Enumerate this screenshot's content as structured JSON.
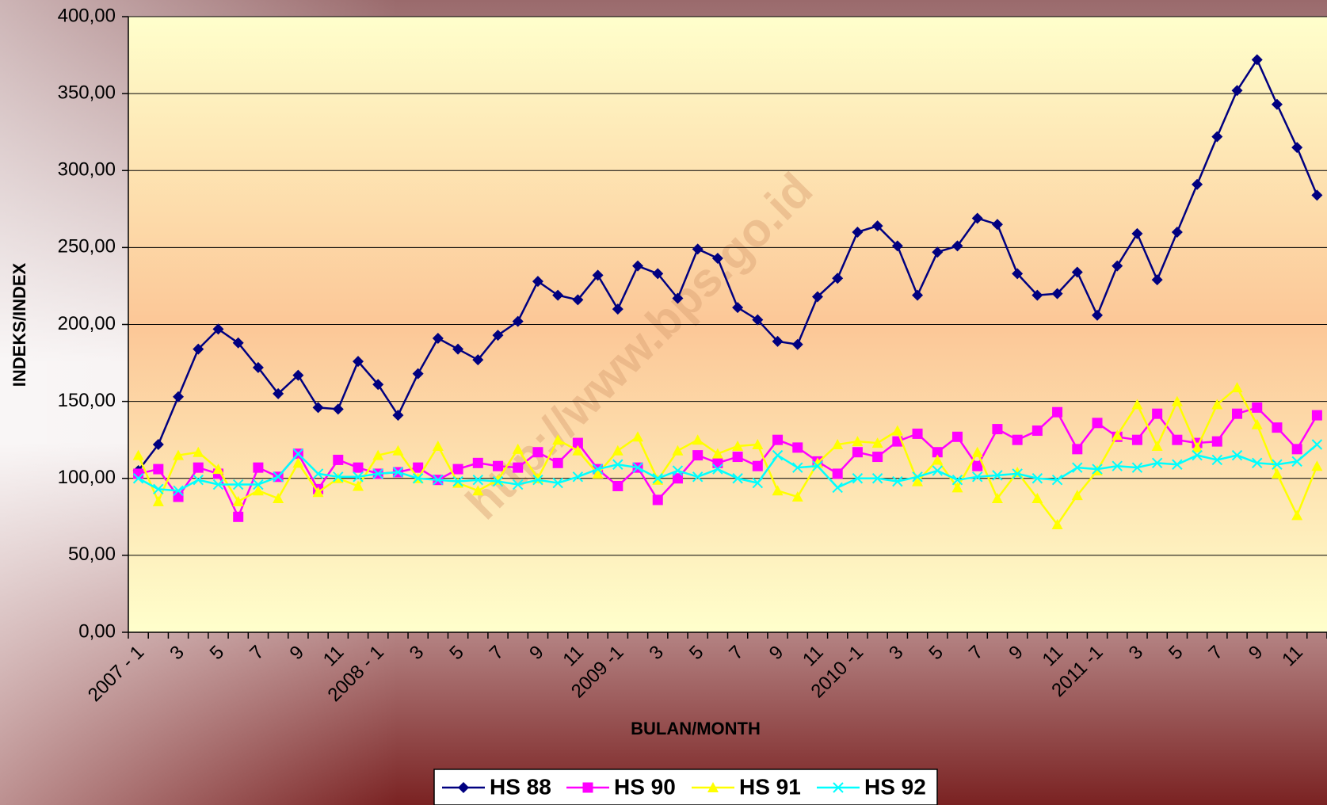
{
  "chart_data": {
    "type": "line",
    "watermark": "http://www.bps.go.id",
    "x_label": "BULAN/MONTH",
    "y_label": "INDEKS/INDEX",
    "categories": [
      "2007 - 1",
      null,
      "3",
      null,
      "5",
      null,
      "7",
      null,
      "9",
      null,
      "11",
      null,
      "2008 - 1",
      null,
      "3",
      null,
      "5",
      null,
      "7",
      null,
      "9",
      null,
      "11",
      null,
      "2009 -1",
      null,
      "3",
      null,
      "5",
      null,
      "7",
      null,
      "9",
      null,
      "11",
      null,
      "2010 -1",
      null,
      "3",
      null,
      "5",
      null,
      "7",
      null,
      "9",
      null,
      "11",
      null,
      "2011 -1",
      null,
      "3",
      null,
      "5",
      null,
      "7",
      null,
      "9",
      null,
      "11",
      null
    ],
    "series": [
      {
        "name": "HS 88",
        "color": "#000080",
        "marker": "diamond",
        "values": [
          105,
          122,
          153,
          184,
          197,
          188,
          172,
          155,
          167,
          146,
          145,
          176,
          161,
          141,
          168,
          191,
          184,
          177,
          193,
          202,
          228,
          219,
          216,
          232,
          210,
          238,
          233,
          217,
          249,
          243,
          211,
          203,
          189,
          187,
          218,
          230,
          260,
          264,
          251,
          219,
          247,
          251,
          269,
          265,
          233,
          219,
          220,
          234,
          206,
          238,
          259,
          229,
          260,
          291,
          322,
          352,
          372,
          343,
          315,
          284
        ]
      },
      {
        "name": "HS 90",
        "color": "#ff00ff",
        "marker": "square",
        "values": [
          103,
          106,
          88,
          107,
          103,
          75,
          107,
          101,
          116,
          93,
          112,
          107,
          103,
          104,
          107,
          99,
          106,
          110,
          108,
          107,
          117,
          110,
          123,
          106,
          95,
          107,
          86,
          100,
          115,
          110,
          114,
          108,
          125,
          120,
          111,
          103,
          117,
          114,
          124,
          129,
          117,
          127,
          108,
          132,
          125,
          131,
          143,
          119,
          136,
          127,
          125,
          142,
          125,
          123,
          124,
          142,
          146,
          133,
          119,
          141
        ]
      },
      {
        "name": "HS 91",
        "color": "#ffff00",
        "marker": "triangle",
        "values": [
          115,
          85,
          115,
          117,
          106,
          85,
          92,
          87,
          110,
          91,
          100,
          95,
          115,
          118,
          100,
          121,
          97,
          92,
          99,
          119,
          100,
          125,
          118,
          103,
          118,
          127,
          99,
          118,
          125,
          116,
          121,
          122,
          92,
          88,
          110,
          122,
          124,
          123,
          131,
          98,
          112,
          94,
          117,
          87,
          104,
          87,
          70,
          89,
          105,
          128,
          148,
          121,
          150,
          120,
          148,
          159,
          135,
          103,
          76,
          108
        ]
      },
      {
        "name": "HS 92",
        "color": "#00ffff",
        "marker": "x",
        "values": [
          100,
          93,
          92,
          99,
          96,
          96,
          96,
          101,
          116,
          103,
          101,
          101,
          103,
          104,
          100,
          99,
          98,
          99,
          98,
          96,
          99,
          97,
          101,
          106,
          109,
          107,
          100,
          105,
          101,
          106,
          100,
          97,
          115,
          107,
          108,
          94,
          100,
          100,
          98,
          101,
          105,
          99,
          101,
          102,
          103,
          100,
          99,
          107,
          106,
          108,
          107,
          110,
          109,
          115,
          112,
          115,
          110,
          109,
          111,
          122
        ]
      }
    ],
    "ylim": [
      0,
      400
    ],
    "yticks": [
      {
        "value": 0,
        "label": "0,00"
      },
      {
        "value": 50,
        "label": "50,00"
      },
      {
        "value": 100,
        "label": "100,00"
      },
      {
        "value": 150,
        "label": "150,00"
      },
      {
        "value": 200,
        "label": "200,00"
      },
      {
        "value": 250,
        "label": "250,00"
      },
      {
        "value": 300,
        "label": "300,00"
      },
      {
        "value": 350,
        "label": "350,00"
      },
      {
        "value": 400,
        "label": "400,00"
      }
    ],
    "grid": true,
    "legend": "bottom"
  }
}
